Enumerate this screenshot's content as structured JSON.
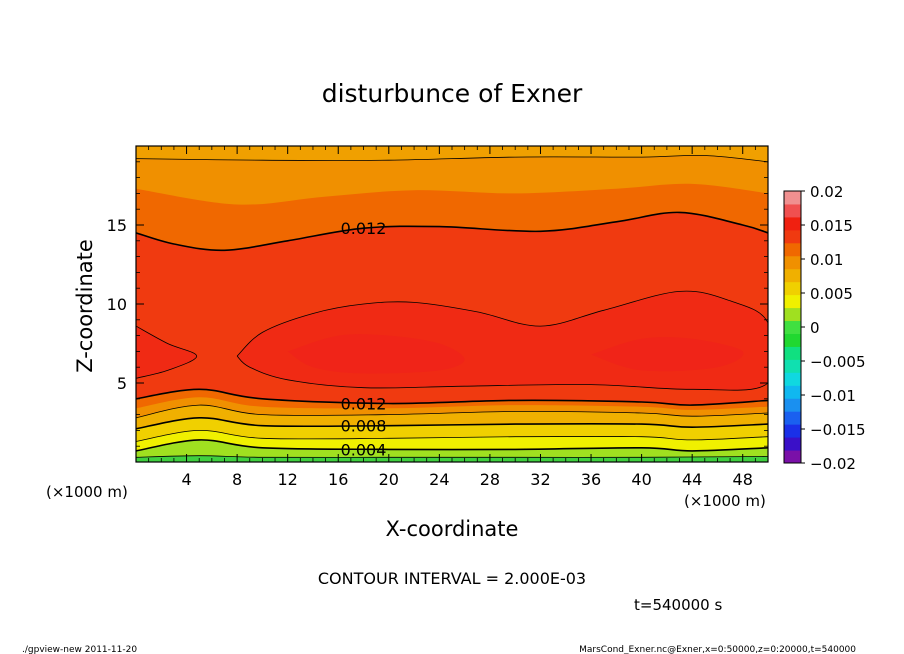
{
  "chart_data": {
    "type": "contour",
    "title": "disturbunce of Exner",
    "xlabel": "X-coordinate",
    "ylabel": "Z-coordinate",
    "x_unit_left": "(×1000 m)",
    "x_unit_right": "(×1000 m)",
    "xlim": [
      0,
      50
    ],
    "ylim": [
      0,
      20
    ],
    "x_ticks": [
      "4",
      "8",
      "12",
      "16",
      "20",
      "24",
      "28",
      "32",
      "36",
      "40",
      "44",
      "48"
    ],
    "x_tick_values": [
      4,
      8,
      12,
      16,
      20,
      24,
      28,
      32,
      36,
      40,
      44,
      48
    ],
    "y_ticks": [
      "5",
      "10",
      "15"
    ],
    "y_tick_values": [
      5,
      10,
      15
    ],
    "contour_interval": "CONTOUR INTERVAL = 2.000E-03",
    "time_label": "t=540000 s",
    "contour_labels": [
      {
        "text": "0.012",
        "x": 18,
        "z": 14.8
      },
      {
        "text": "0.012",
        "x": 18,
        "z": 3.7
      },
      {
        "text": "0.008",
        "x": 18,
        "z": 2.3
      },
      {
        "text": "0.004",
        "x": 18,
        "z": 0.8
      }
    ],
    "contour_lines": [
      {
        "level": 0.002,
        "points": [
          [
            0,
            0.3
          ],
          [
            5,
            0.4
          ],
          [
            10,
            0.3
          ],
          [
            20,
            0.3
          ],
          [
            30,
            0.3
          ],
          [
            40,
            0.3
          ],
          [
            50,
            0.35
          ]
        ]
      },
      {
        "level": 0.004,
        "points": [
          [
            0,
            0.7
          ],
          [
            5,
            1.4
          ],
          [
            10,
            0.9
          ],
          [
            20,
            0.8
          ],
          [
            30,
            0.8
          ],
          [
            40,
            0.9
          ],
          [
            44,
            0.7
          ],
          [
            50,
            0.9
          ]
        ]
      },
      {
        "level": 0.006,
        "points": [
          [
            0,
            1.3
          ],
          [
            5,
            2.0
          ],
          [
            10,
            1.5
          ],
          [
            20,
            1.5
          ],
          [
            30,
            1.6
          ],
          [
            40,
            1.6
          ],
          [
            44,
            1.4
          ],
          [
            50,
            1.6
          ]
        ]
      },
      {
        "level": 0.008,
        "points": [
          [
            0,
            2.1
          ],
          [
            5,
            2.8
          ],
          [
            10,
            2.3
          ],
          [
            20,
            2.3
          ],
          [
            30,
            2.4
          ],
          [
            40,
            2.4
          ],
          [
            44,
            2.2
          ],
          [
            50,
            2.4
          ]
        ]
      },
      {
        "level": 0.01,
        "points": [
          [
            0,
            2.8
          ],
          [
            5,
            3.6
          ],
          [
            10,
            3.0
          ],
          [
            20,
            3.0
          ],
          [
            30,
            3.2
          ],
          [
            40,
            3.1
          ],
          [
            44,
            2.9
          ],
          [
            50,
            3.1
          ]
        ]
      },
      {
        "level": 0.012,
        "points": [
          [
            0,
            4.0
          ],
          [
            5,
            4.6
          ],
          [
            10,
            4.0
          ],
          [
            20,
            3.7
          ],
          [
            30,
            3.9
          ],
          [
            40,
            3.8
          ],
          [
            44,
            3.6
          ],
          [
            50,
            3.9
          ]
        ]
      },
      {
        "level": 0.012,
        "points": [
          [
            0,
            14.5
          ],
          [
            3,
            13.8
          ],
          [
            7,
            13.4
          ],
          [
            12,
            14.0
          ],
          [
            18,
            14.8
          ],
          [
            24,
            14.9
          ],
          [
            32,
            14.6
          ],
          [
            38,
            15.2
          ],
          [
            43,
            15.8
          ],
          [
            48,
            15.0
          ],
          [
            50,
            14.5
          ]
        ]
      },
      {
        "level": 0.01,
        "points": [
          [
            0,
            19.2
          ],
          [
            10,
            19.1
          ],
          [
            20,
            19.1
          ],
          [
            30,
            19.3
          ],
          [
            40,
            19.3
          ],
          [
            45,
            19.4
          ],
          [
            50,
            19.0
          ]
        ]
      },
      {
        "level": 0.014,
        "points": [
          [
            0,
            8.6
          ],
          [
            2.5,
            7.5
          ],
          [
            4.8,
            6.7
          ],
          [
            2.5,
            5.8
          ],
          [
            0,
            5.3
          ]
        ]
      },
      {
        "level": 0.014,
        "points": [
          [
            8,
            6.7
          ],
          [
            10,
            8.2
          ],
          [
            14,
            9.4
          ],
          [
            18,
            10.0
          ],
          [
            22,
            10.1
          ],
          [
            27,
            9.5
          ],
          [
            32,
            8.6
          ],
          [
            37,
            9.6
          ],
          [
            43,
            10.8
          ],
          [
            47,
            10.2
          ],
          [
            50,
            8.8
          ],
          [
            50,
            5.0
          ],
          [
            44,
            4.6
          ],
          [
            36,
            4.9
          ],
          [
            26,
            4.8
          ],
          [
            18,
            4.7
          ],
          [
            12,
            5.2
          ],
          [
            9,
            6.0
          ],
          [
            8,
            6.7
          ]
        ]
      }
    ],
    "colorbar": {
      "ticks": [
        "0.02",
        "0.015",
        "0.01",
        "0.005",
        "0",
        "−0.005",
        "−0.01",
        "−0.015",
        "−0.02"
      ],
      "levels": [
        -0.02,
        -0.018,
        -0.016,
        -0.014,
        -0.012,
        -0.01,
        -0.008,
        -0.006,
        -0.004,
        -0.002,
        0,
        0.002,
        0.004,
        0.006,
        0.008,
        0.01,
        0.012,
        0.014,
        0.016,
        0.018,
        0.02
      ],
      "colors": [
        "#7a10a8",
        "#3a10c8",
        "#1a30e8",
        "#1a60f0",
        "#1a90f0",
        "#10b8f0",
        "#10d8e0",
        "#10e0b0",
        "#10e080",
        "#20d830",
        "#40e040",
        "#a0e020",
        "#f0f000",
        "#f0d000",
        "#f0b000",
        "#f09000",
        "#f06800",
        "#f03a10",
        "#f02010",
        "#f05050",
        "#f09090"
      ]
    },
    "fill_bands": [
      {
        "level": 0.004,
        "color": "#a0e020",
        "points": [
          [
            0,
            0.3
          ],
          [
            5,
            0.4
          ],
          [
            10,
            0.3
          ],
          [
            20,
            0.3
          ],
          [
            30,
            0.3
          ],
          [
            40,
            0.3
          ],
          [
            50,
            0.35
          ]
        ]
      },
      {
        "level": 0.006,
        "color": "#f0f000",
        "points": [
          [
            0,
            0.7
          ],
          [
            5,
            1.4
          ],
          [
            10,
            0.9
          ],
          [
            20,
            0.8
          ],
          [
            30,
            0.8
          ],
          [
            40,
            0.9
          ],
          [
            44,
            0.7
          ],
          [
            50,
            0.9
          ]
        ]
      },
      {
        "level": 0.008,
        "color": "#f0d000",
        "points": [
          [
            0,
            1.3
          ],
          [
            5,
            2.0
          ],
          [
            10,
            1.5
          ],
          [
            20,
            1.5
          ],
          [
            30,
            1.6
          ],
          [
            40,
            1.6
          ],
          [
            44,
            1.4
          ],
          [
            50,
            1.6
          ]
        ]
      },
      {
        "level": 0.01,
        "color": "#f0b000",
        "points": [
          [
            0,
            2.1
          ],
          [
            5,
            2.8
          ],
          [
            10,
            2.3
          ],
          [
            20,
            2.3
          ],
          [
            30,
            2.4
          ],
          [
            40,
            2.4
          ],
          [
            44,
            2.2
          ],
          [
            50,
            2.4
          ]
        ]
      },
      {
        "level": 0.012,
        "color": "#f09000",
        "points": [
          [
            0,
            2.8
          ],
          [
            5,
            3.6
          ],
          [
            10,
            3.0
          ],
          [
            20,
            3.0
          ],
          [
            30,
            3.2
          ],
          [
            40,
            3.1
          ],
          [
            44,
            2.9
          ],
          [
            50,
            3.1
          ]
        ]
      },
      {
        "level": 0.013,
        "color": "#f06800",
        "points": [
          [
            0,
            3.4
          ],
          [
            5,
            4.1
          ],
          [
            10,
            3.5
          ],
          [
            20,
            3.4
          ],
          [
            30,
            3.6
          ],
          [
            40,
            3.5
          ],
          [
            44,
            3.3
          ],
          [
            50,
            3.5
          ]
        ]
      },
      {
        "level": 0.014,
        "color": "#f03a10",
        "points": [
          [
            0,
            4.0
          ],
          [
            5,
            4.6
          ],
          [
            10,
            4.0
          ],
          [
            20,
            3.7
          ],
          [
            30,
            3.9
          ],
          [
            40,
            3.8
          ],
          [
            44,
            3.6
          ],
          [
            50,
            3.9
          ]
        ]
      }
    ],
    "upper_bands": [
      {
        "level": 0.013,
        "color": "#f06800",
        "points": [
          [
            0,
            14.5
          ],
          [
            3,
            13.8
          ],
          [
            7,
            13.4
          ],
          [
            12,
            14.0
          ],
          [
            18,
            14.8
          ],
          [
            24,
            14.9
          ],
          [
            32,
            14.6
          ],
          [
            38,
            15.2
          ],
          [
            43,
            15.8
          ],
          [
            48,
            15.0
          ],
          [
            50,
            14.5
          ]
        ]
      },
      {
        "level": 0.012,
        "color": "#f09000",
        "points": [
          [
            0,
            17.3
          ],
          [
            8,
            16.3
          ],
          [
            15,
            16.8
          ],
          [
            22,
            17.2
          ],
          [
            30,
            17.0
          ],
          [
            38,
            17.3
          ],
          [
            44,
            17.6
          ],
          [
            50,
            17.0
          ]
        ]
      },
      {
        "level": 0.011,
        "color": "#f0a000",
        "points": [
          [
            0,
            19.2
          ],
          [
            10,
            19.1
          ],
          [
            20,
            19.1
          ],
          [
            30,
            19.3
          ],
          [
            40,
            19.3
          ],
          [
            45,
            19.4
          ],
          [
            50,
            19.0
          ]
        ]
      }
    ],
    "core_region": {
      "level": 0.016,
      "color": "#f02418",
      "points": [
        [
          12,
          7.0
        ],
        [
          16,
          8.0
        ],
        [
          20,
          8.0
        ],
        [
          24,
          7.5
        ],
        [
          26,
          6.5
        ],
        [
          24,
          5.8
        ],
        [
          18,
          5.6
        ],
        [
          14,
          6.0
        ]
      ]
    },
    "core_region2": {
      "level": 0.016,
      "color": "#f02418",
      "points": [
        [
          36,
          6.8
        ],
        [
          40,
          7.8
        ],
        [
          44,
          7.8
        ],
        [
          48,
          7.0
        ],
        [
          46,
          6.0
        ],
        [
          40,
          5.8
        ]
      ]
    }
  },
  "footer": {
    "left": "./gpview-new   2011-11-20",
    "right": "MarsCond_Exner.nc@Exner,x=0:50000,z=0:20000,t=540000"
  }
}
